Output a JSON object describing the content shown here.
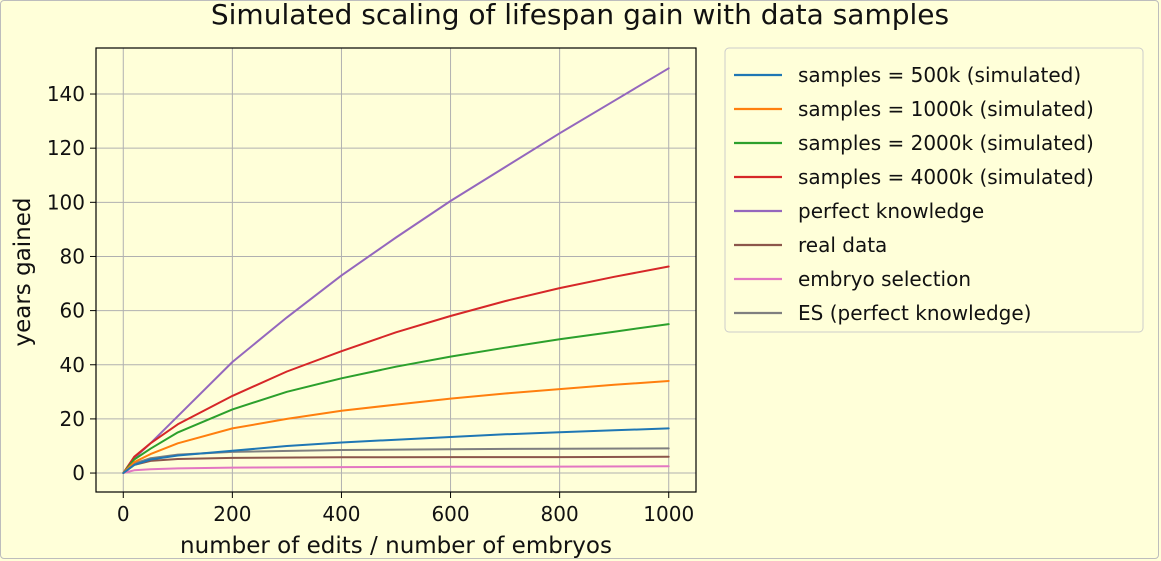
{
  "chart_data": {
    "type": "line",
    "title": "Simulated scaling of lifespan gain with data samples",
    "xlabel": "number of edits / number of embryos",
    "ylabel": "years gained",
    "xlim": [
      -50,
      1050
    ],
    "ylim": [
      -7,
      157
    ],
    "xticks": [
      0,
      200,
      400,
      600,
      800,
      1000
    ],
    "yticks": [
      0,
      20,
      40,
      60,
      80,
      100,
      120,
      140
    ],
    "grid": true,
    "legend_position": "outside-right",
    "series": [
      {
        "name": "samples = 500k (simulated)",
        "color": "#1f77b4",
        "x": [
          0,
          20,
          50,
          100,
          200,
          300,
          400,
          500,
          600,
          700,
          800,
          900,
          1000
        ],
        "y": [
          0,
          3,
          5,
          6.5,
          8.2,
          10,
          11.3,
          12.3,
          13.3,
          14.3,
          15.1,
          15.8,
          16.5
        ]
      },
      {
        "name": "samples = 1000k (simulated)",
        "color": "#ff7f0e",
        "x": [
          0,
          20,
          50,
          100,
          200,
          300,
          400,
          500,
          600,
          700,
          800,
          900,
          1000
        ],
        "y": [
          0,
          4,
          7,
          11,
          16.5,
          20,
          23,
          25.3,
          27.5,
          29.4,
          31,
          32.6,
          34
        ]
      },
      {
        "name": "samples = 2000k (simulated)",
        "color": "#2ca02c",
        "x": [
          0,
          20,
          50,
          100,
          200,
          300,
          400,
          500,
          600,
          700,
          800,
          900,
          1000
        ],
        "y": [
          0,
          5,
          9,
          15,
          23.5,
          30,
          35,
          39.3,
          43,
          46.3,
          49.4,
          52.2,
          55
        ]
      },
      {
        "name": "samples = 4000k (simulated)",
        "color": "#d62728",
        "x": [
          0,
          20,
          50,
          100,
          200,
          300,
          400,
          500,
          600,
          700,
          800,
          900,
          1000
        ],
        "y": [
          0,
          6,
          11,
          18,
          28.5,
          37.5,
          45,
          52,
          58,
          63.5,
          68.3,
          72.5,
          76.3
        ]
      },
      {
        "name": "perfect knowledge",
        "color": "#9467bd",
        "x": [
          0,
          20,
          50,
          100,
          200,
          300,
          400,
          500,
          600,
          700,
          800,
          900,
          1000
        ],
        "y": [
          0,
          5.5,
          11,
          21,
          41,
          57.5,
          73,
          87,
          100.5,
          113,
          125.5,
          137.5,
          149.5
        ]
      },
      {
        "name": "real data",
        "color": "#8c564b",
        "x": [
          0,
          20,
          50,
          100,
          200,
          400,
          600,
          800,
          1000
        ],
        "y": [
          0,
          3,
          4.5,
          5.2,
          5.6,
          5.8,
          5.9,
          5.9,
          6
        ]
      },
      {
        "name": "embryo selection",
        "color": "#e377c2",
        "x": [
          0,
          20,
          50,
          100,
          200,
          400,
          600,
          800,
          1000
        ],
        "y": [
          0,
          1,
          1.4,
          1.7,
          2,
          2.2,
          2.3,
          2.4,
          2.5
        ]
      },
      {
        "name": "ES (perfect knowledge)",
        "color": "#7f7f7f",
        "x": [
          0,
          20,
          50,
          100,
          200,
          400,
          600,
          800,
          1000
        ],
        "y": [
          0,
          3.5,
          5.5,
          6.8,
          7.8,
          8.5,
          8.8,
          9,
          9.1
        ]
      }
    ]
  }
}
